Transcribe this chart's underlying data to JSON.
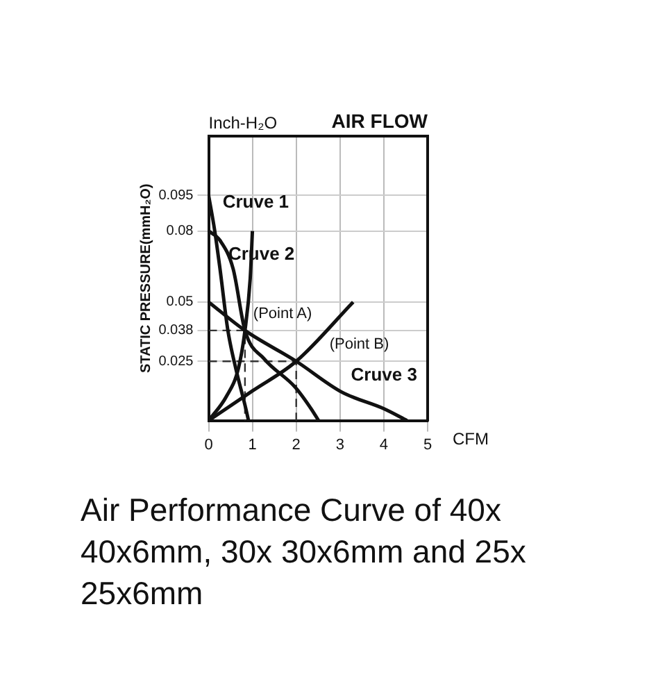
{
  "chart_data": {
    "type": "line",
    "title": "AIR FLOW",
    "subtitle": "Inch-H₂O",
    "xlabel": "CFM",
    "ylabel": "STATIC PRESSURE(mmH₂O)",
    "xlim": [
      0,
      5
    ],
    "xticks": [
      0,
      1,
      2,
      3,
      4,
      5
    ],
    "ylim": [
      0,
      0.12
    ],
    "yticks": [
      0.025,
      0.038,
      0.05,
      0.08,
      0.095
    ],
    "grid": true,
    "legend": false,
    "marker": "none",
    "line_style": "solid",
    "series": [
      {
        "color": "#111111",
        "x": [
          0,
          0.14,
          0.26,
          0.44,
          0.62,
          0.85,
          0.91
        ],
        "values": [
          0.095,
          0.08,
          0.064,
          0.038,
          0.022,
          0.005,
          0
        ]
      },
      {
        "color": "#111111",
        "x": [
          0,
          0.26,
          0.56,
          0.83,
          1.27,
          1.98,
          2.34,
          2.51
        ],
        "values": [
          0.08,
          0.076,
          0.064,
          0.038,
          0.026,
          0.014,
          0.005,
          0
        ]
      },
      {
        "color": "#111111",
        "x": [
          0,
          0.83,
          2,
          3.04,
          4,
          4.53
        ],
        "values": [
          0.05,
          0.038,
          0.025,
          0.012,
          0.005,
          0
        ]
      },
      {
        "color": "#111111",
        "x": [
          0,
          0.4,
          0.68,
          0.83,
          0.95,
          1
        ],
        "values": [
          0,
          0.01,
          0.022,
          0.038,
          0.06,
          0.08
        ]
      },
      {
        "color": "#111111",
        "x": [
          0,
          1,
          2,
          3.3
        ],
        "values": [
          0,
          0.0125,
          0.025,
          0.05
        ]
      },
      {
        "color": "#333333",
        "line_style": "dashed",
        "x": [
          0,
          0.83,
          0.83
        ],
        "values": [
          0.038,
          0.038,
          0
        ]
      },
      {
        "color": "#333333",
        "line_style": "dashed",
        "x": [
          0,
          2,
          2
        ],
        "values": [
          0.025,
          0.025,
          0
        ]
      }
    ],
    "annotations": [
      "Cruve 1",
      "Cruve 2",
      "Cruve 3",
      {
        "text": "(Point A)",
        "x": 0.83,
        "y": 0.038
      },
      {
        "text": "(Point B)",
        "x": 2,
        "y": 0.025
      },
      "Air Performance Curve of 40x 40x6mm, 30x 30x6mm and 25x 25x6mm"
    ]
  }
}
